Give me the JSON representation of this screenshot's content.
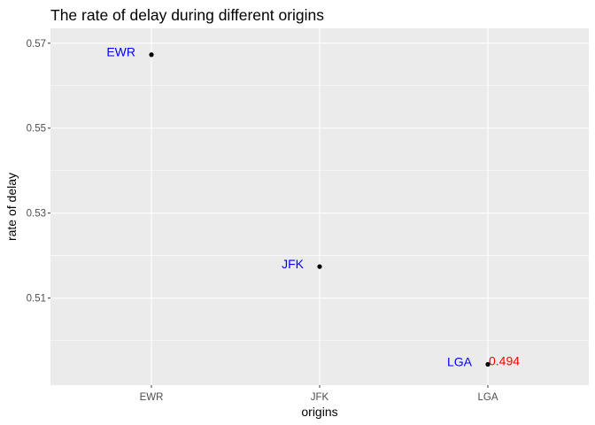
{
  "chart_data": {
    "type": "scatter",
    "title": "The rate of delay during different origins",
    "xlabel": "origins",
    "ylabel": "rate of delay",
    "categories": [
      "EWR",
      "JFK",
      "LGA"
    ],
    "values": [
      0.5673,
      0.5174,
      0.4944
    ],
    "ylim": [
      0.4895,
      0.5735
    ],
    "yticks": [
      0.51,
      0.53,
      0.55,
      0.57
    ],
    "ytick_labels": [
      "0.51",
      "0.53",
      "0.55",
      "0.57"
    ],
    "point_labels": [
      "EWR",
      "JFK",
      "LGA"
    ],
    "annotation": {
      "category": "LGA",
      "text": "0.494"
    },
    "grid": true,
    "colors": {
      "panel": "#ebebeb",
      "grid": "#ffffff",
      "point": "#000000",
      "point_label": "#0000ff",
      "annotation": "#ff0000"
    }
  }
}
